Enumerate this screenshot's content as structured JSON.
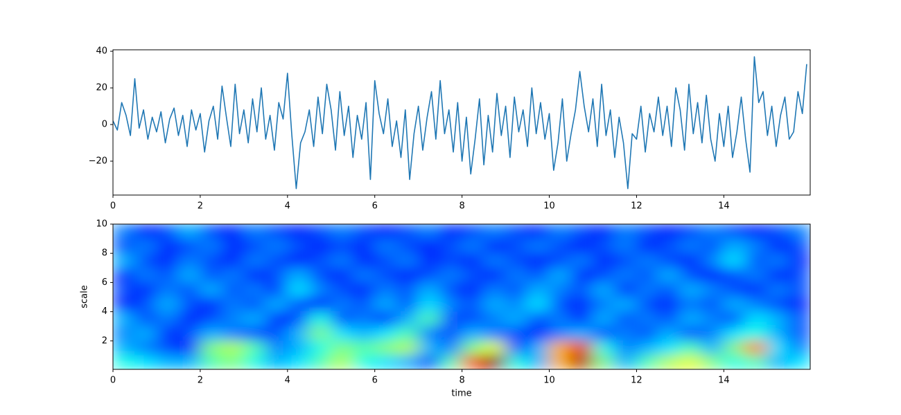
{
  "chart_data": [
    {
      "type": "line",
      "color": "#1f77b4",
      "x": [
        0.0,
        0.1,
        0.2,
        0.3,
        0.4,
        0.5,
        0.6,
        0.7,
        0.8,
        0.9,
        1.0,
        1.1,
        1.2,
        1.3,
        1.4,
        1.5,
        1.6,
        1.7,
        1.8,
        1.9,
        2.0,
        2.1,
        2.2,
        2.3,
        2.4,
        2.5,
        2.6,
        2.7,
        2.8,
        2.9,
        3.0,
        3.1,
        3.2,
        3.3,
        3.4,
        3.5,
        3.6,
        3.7,
        3.8,
        3.9,
        4.0,
        4.1,
        4.2,
        4.3,
        4.4,
        4.5,
        4.6,
        4.7,
        4.8,
        4.9,
        5.0,
        5.1,
        5.2,
        5.3,
        5.4,
        5.5,
        5.6,
        5.7,
        5.8,
        5.9,
        6.0,
        6.1,
        6.2,
        6.3,
        6.4,
        6.5,
        6.6,
        6.7,
        6.8,
        6.9,
        7.0,
        7.1,
        7.2,
        7.3,
        7.4,
        7.5,
        7.6,
        7.7,
        7.8,
        7.9,
        8.0,
        8.1,
        8.2,
        8.3,
        8.4,
        8.5,
        8.6,
        8.7,
        8.8,
        8.9,
        9.0,
        9.1,
        9.2,
        9.3,
        9.4,
        9.5,
        9.6,
        9.7,
        9.8,
        9.9,
        10.0,
        10.1,
        10.2,
        10.3,
        10.4,
        10.5,
        10.6,
        10.7,
        10.8,
        10.9,
        11.0,
        11.1,
        11.2,
        11.3,
        11.4,
        11.5,
        11.6,
        11.7,
        11.8,
        11.9,
        12.0,
        12.1,
        12.2,
        12.3,
        12.4,
        12.5,
        12.6,
        12.7,
        12.8,
        12.9,
        13.0,
        13.1,
        13.2,
        13.3,
        13.4,
        13.5,
        13.6,
        13.7,
        13.8,
        13.9,
        14.0,
        14.1,
        14.2,
        14.3,
        14.4,
        14.5,
        14.6,
        14.7,
        14.8,
        14.9,
        15.0,
        15.1,
        15.2,
        15.3,
        15.4,
        15.5,
        15.6,
        15.7,
        15.8,
        15.9
      ],
      "values": [
        2,
        -3,
        12,
        5,
        -6,
        25,
        -2,
        8,
        -8,
        4,
        -4,
        7,
        -10,
        3,
        9,
        -6,
        5,
        -12,
        8,
        -3,
        6,
        -15,
        2,
        10,
        -8,
        21,
        4,
        -12,
        22,
        -5,
        8,
        -10,
        14,
        -4,
        20,
        -8,
        5,
        -14,
        12,
        3,
        28,
        -6,
        -35,
        -10,
        -4,
        8,
        -12,
        15,
        -5,
        22,
        8,
        -14,
        18,
        -6,
        10,
        -18,
        5,
        -8,
        12,
        -30,
        24,
        6,
        -5,
        14,
        -12,
        2,
        -18,
        8,
        -30,
        -5,
        10,
        -14,
        4,
        18,
        -8,
        24,
        -5,
        8,
        -15,
        12,
        -20,
        4,
        -27,
        -8,
        14,
        -22,
        5,
        -15,
        17,
        -6,
        10,
        -18,
        15,
        -4,
        8,
        -12,
        20,
        -5,
        12,
        -8,
        6,
        -25,
        -10,
        14,
        -20,
        -5,
        8,
        29,
        10,
        -4,
        14,
        -12,
        22,
        -6,
        8,
        -18,
        4,
        -10,
        -35,
        -5,
        -8,
        10,
        -15,
        6,
        -4,
        15,
        -6,
        10,
        -12,
        20,
        8,
        -14,
        22,
        -5,
        12,
        -10,
        16,
        -8,
        -20,
        6,
        -12,
        10,
        -18,
        -4,
        15,
        -8,
        -26,
        37,
        12,
        18,
        -6,
        10,
        -12,
        5,
        15,
        -8,
        -4,
        18,
        6,
        33
      ],
      "xlim": [
        0,
        15.98
      ],
      "ylim": [
        -38.5,
        40.8
      ],
      "xticks": [
        0,
        2,
        4,
        6,
        8,
        10,
        12,
        14
      ],
      "yticks": [
        {
          "value": -20,
          "label": "−20"
        },
        0,
        20,
        40
      ]
    },
    {
      "type": "heatmap",
      "colormap": "jet",
      "zlim": [
        0,
        1
      ],
      "xlabel": "time",
      "ylabel": "scale",
      "xlim": [
        0,
        15.98
      ],
      "ylim": [
        0.05,
        10
      ],
      "xticks": [
        0,
        2,
        4,
        6,
        8,
        10,
        12,
        14
      ],
      "yticks": [
        2,
        4,
        6,
        8,
        10
      ],
      "z": [
        [
          0.4,
          0.35,
          0.3,
          0.3,
          0.45,
          0.5,
          0.4,
          0.3,
          0.35,
          0.45,
          0.55,
          0.4,
          0.35,
          0.3,
          0.2,
          0.45,
          0.8,
          1.0,
          0.4,
          0.3,
          0.7,
          0.95,
          0.5,
          0.3,
          0.45,
          0.55,
          0.6,
          0.5,
          0.4,
          0.45,
          0.3,
          0.35
        ],
        [
          0.3,
          0.25,
          0.2,
          0.15,
          0.5,
          0.55,
          0.45,
          0.25,
          0.3,
          0.4,
          0.5,
          0.45,
          0.5,
          0.55,
          0.3,
          0.25,
          0.5,
          0.6,
          0.2,
          0.3,
          0.7,
          0.9,
          0.4,
          0.25,
          0.3,
          0.35,
          0.45,
          0.3,
          0.5,
          0.75,
          0.35,
          0.25
        ],
        [
          0.25,
          0.3,
          0.15,
          0.2,
          0.3,
          0.25,
          0.2,
          0.2,
          0.3,
          0.5,
          0.35,
          0.3,
          0.35,
          0.45,
          0.25,
          0.2,
          0.3,
          0.25,
          0.2,
          0.15,
          0.25,
          0.3,
          0.2,
          0.25,
          0.2,
          0.3,
          0.2,
          0.25,
          0.35,
          0.4,
          0.3,
          0.2
        ],
        [
          0.3,
          0.2,
          0.25,
          0.15,
          0.2,
          0.25,
          0.3,
          0.15,
          0.2,
          0.4,
          0.2,
          0.25,
          0.15,
          0.3,
          0.45,
          0.2,
          0.2,
          0.25,
          0.3,
          0.2,
          0.25,
          0.15,
          0.3,
          0.2,
          0.25,
          0.2,
          0.3,
          0.25,
          0.2,
          0.35,
          0.3,
          0.2
        ],
        [
          0.15,
          0.2,
          0.3,
          0.2,
          0.15,
          0.25,
          0.2,
          0.3,
          0.2,
          0.15,
          0.25,
          0.2,
          0.3,
          0.2,
          0.35,
          0.25,
          0.2,
          0.3,
          0.25,
          0.35,
          0.2,
          0.15,
          0.25,
          0.3,
          0.2,
          0.15,
          0.25,
          0.2,
          0.3,
          0.25,
          0.2,
          0.15
        ],
        [
          0.2,
          0.15,
          0.25,
          0.2,
          0.3,
          0.2,
          0.25,
          0.15,
          0.35,
          0.25,
          0.2,
          0.15,
          0.25,
          0.2,
          0.3,
          0.2,
          0.15,
          0.25,
          0.2,
          0.3,
          0.25,
          0.2,
          0.3,
          0.15,
          0.25,
          0.2,
          0.3,
          0.25,
          0.2,
          0.15,
          0.25,
          0.2
        ],
        [
          0.15,
          0.25,
          0.2,
          0.3,
          0.2,
          0.25,
          0.15,
          0.2,
          0.3,
          0.2,
          0.15,
          0.25,
          0.2,
          0.15,
          0.2,
          0.25,
          0.2,
          0.15,
          0.25,
          0.2,
          0.3,
          0.15,
          0.2,
          0.25,
          0.2,
          0.3,
          0.2,
          0.15,
          0.2,
          0.25,
          0.15,
          0.2
        ],
        [
          0.3,
          0.2,
          0.15,
          0.25,
          0.2,
          0.15,
          0.25,
          0.2,
          0.15,
          0.2,
          0.25,
          0.15,
          0.2,
          0.25,
          0.15,
          0.2,
          0.15,
          0.25,
          0.2,
          0.15,
          0.2,
          0.25,
          0.15,
          0.2,
          0.25,
          0.2,
          0.15,
          0.25,
          0.35,
          0.2,
          0.25,
          0.15
        ],
        [
          0.2,
          0.25,
          0.15,
          0.2,
          0.25,
          0.15,
          0.2,
          0.25,
          0.2,
          0.15,
          0.2,
          0.15,
          0.25,
          0.2,
          0.15,
          0.2,
          0.25,
          0.15,
          0.2,
          0.25,
          0.2,
          0.15,
          0.2,
          0.25,
          0.15,
          0.2,
          0.25,
          0.2,
          0.3,
          0.25,
          0.15,
          0.2
        ],
        [
          0.25,
          0.15,
          0.2,
          0.3,
          0.2,
          0.15,
          0.25,
          0.2,
          0.15,
          0.2,
          0.25,
          0.2,
          0.15,
          0.2,
          0.25,
          0.15,
          0.2,
          0.25,
          0.2,
          0.15,
          0.25,
          0.2,
          0.15,
          0.25,
          0.2,
          0.15,
          0.2,
          0.25,
          0.2,
          0.15,
          0.2,
          0.25
        ]
      ]
    }
  ]
}
